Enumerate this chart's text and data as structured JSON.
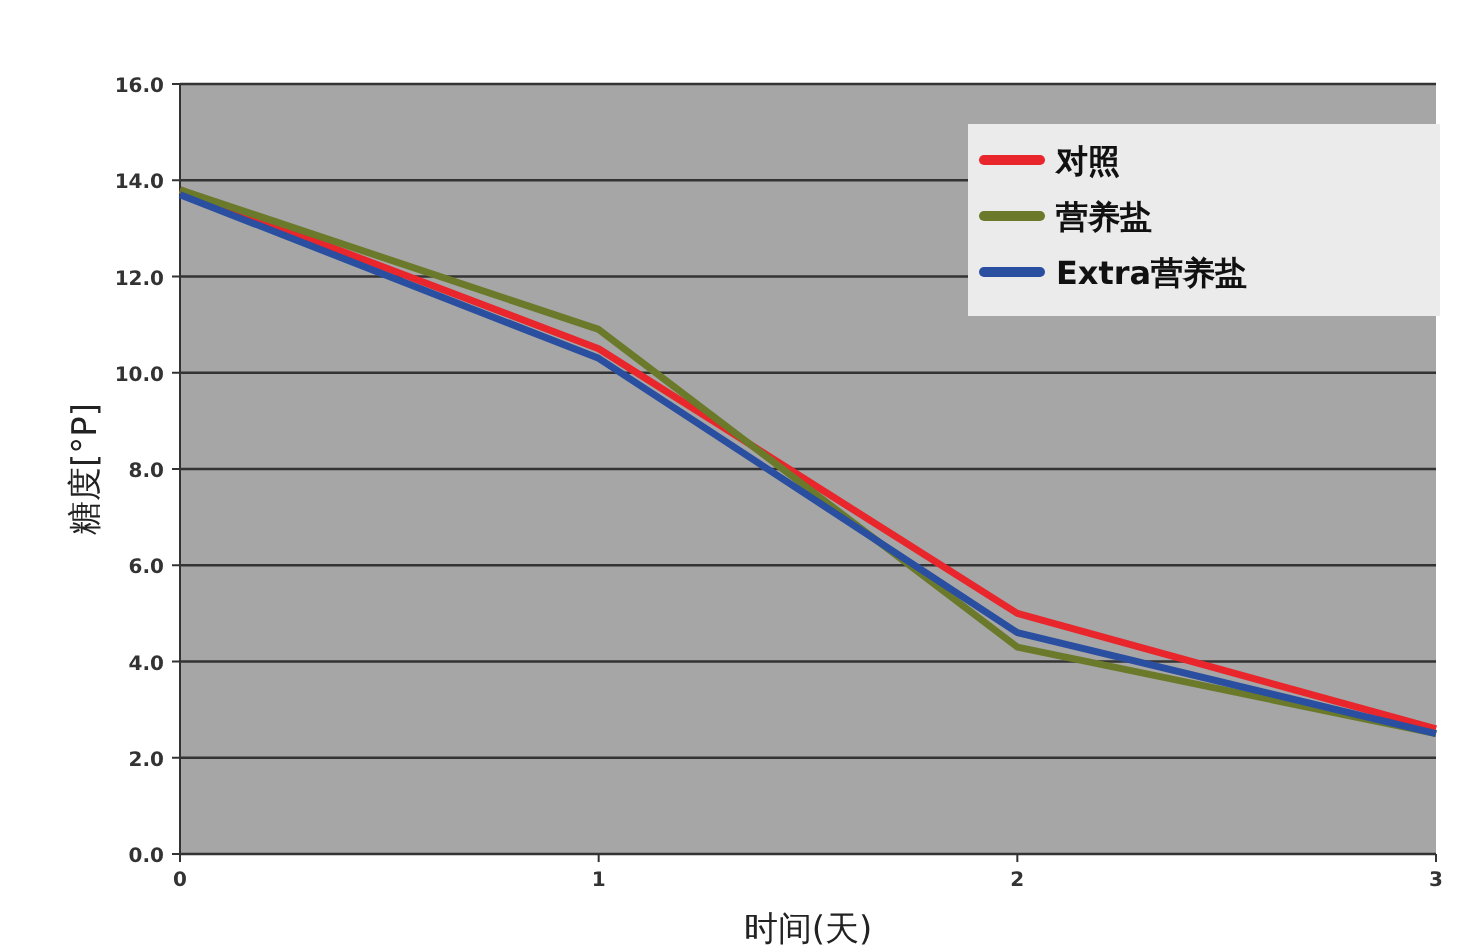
{
  "chart_data": {
    "type": "line",
    "xlabel": "时间(天)",
    "ylabel": "糖度[°P]",
    "x": [
      0,
      1,
      2,
      3
    ],
    "series": [
      {
        "name": "对照",
        "color": "#e8262b",
        "values": [
          13.8,
          10.5,
          5.0,
          2.6
        ]
      },
      {
        "name": "营养盐",
        "color": "#6b7a2a",
        "values": [
          13.8,
          10.9,
          4.3,
          2.5
        ]
      },
      {
        "name": "Extra营养盐",
        "color": "#2a4ea0",
        "values": [
          13.7,
          10.3,
          4.6,
          2.5
        ]
      }
    ],
    "xlim": [
      0,
      3
    ],
    "xticks": [
      0,
      1,
      2,
      3
    ],
    "ylim": [
      0,
      16
    ],
    "yticks": [
      {
        "value": 0,
        "label": "0.0"
      },
      {
        "value": 2,
        "label": "2.0"
      },
      {
        "value": 4,
        "label": "4.0"
      },
      {
        "value": 6,
        "label": "6.0"
      },
      {
        "value": 8,
        "label": "8.0"
      },
      {
        "value": 10,
        "label": "10.0"
      },
      {
        "value": 12,
        "label": "12.0"
      },
      {
        "value": 14,
        "label": "14.0"
      },
      {
        "value": 16,
        "label": "16.0"
      }
    ],
    "grid": "y",
    "legend": "top right",
    "marker": "none",
    "line_style": "solid"
  }
}
